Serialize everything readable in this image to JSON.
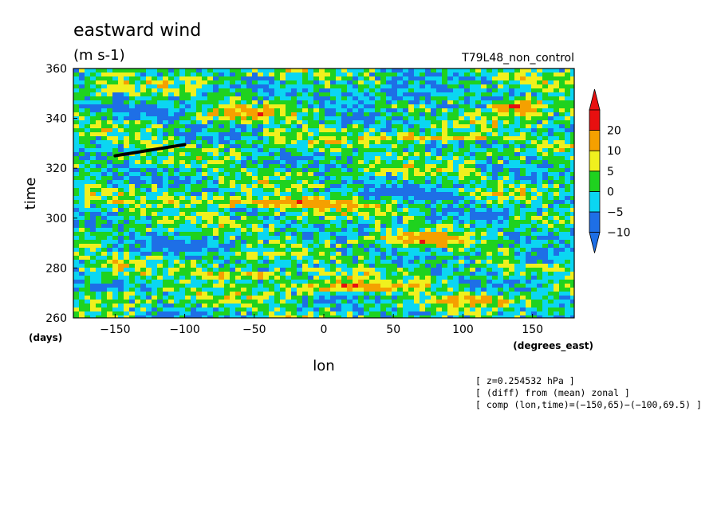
{
  "chart_data": {
    "type": "heatmap",
    "title": "eastward wind",
    "units": "(m s-1)",
    "run_label": "T79L48_non_control",
    "xlabel": "lon",
    "ylabel": "time",
    "x_unit": "(degrees_east)",
    "y_unit": "(days)",
    "xlim": [
      -180,
      180
    ],
    "ylim": [
      260,
      360
    ],
    "x_ticks": [
      -150,
      -100,
      -50,
      0,
      50,
      100,
      150
    ],
    "x_tick_labels": [
      "−150",
      "−100",
      "−50",
      "0",
      "50",
      "100",
      "150"
    ],
    "y_ticks": [
      260,
      280,
      300,
      320,
      340,
      360
    ],
    "y_tick_labels": [
      "260",
      "280",
      "300",
      "320",
      "340",
      "360"
    ],
    "colorbar": {
      "levels": [
        -10,
        -5,
        0,
        5,
        10,
        20
      ],
      "labels": [
        "−10",
        "−5",
        "0",
        "5",
        "10",
        "20"
      ],
      "colors": [
        "#1e6fe6",
        "#0bd6f2",
        "#1fd21f",
        "#f0f01e",
        "#f5a000",
        "#e81010"
      ],
      "under_color": "#1e6fe6",
      "over_color": "#e81010"
    },
    "background_color": "#1fb8e8",
    "features": [
      {
        "lon": 140,
        "time": 346,
        "value": 22,
        "lon_width": 40,
        "time_width": 6
      },
      {
        "lon": -120,
        "time": 343,
        "value": -9,
        "lon_width": 50,
        "time_width": 6
      },
      {
        "lon": -60,
        "time": 343,
        "value": 12,
        "lon_width": 60,
        "time_width": 4
      },
      {
        "lon": 80,
        "time": 333,
        "value": 14,
        "lon_width": 90,
        "time_width": 3
      },
      {
        "lon": -40,
        "time": 307,
        "value": 18,
        "lon_width": 120,
        "time_width": 4
      },
      {
        "lon": 70,
        "time": 292,
        "value": 12,
        "lon_width": 60,
        "time_width": 5
      },
      {
        "lon": 20,
        "time": 273,
        "value": 16,
        "lon_width": 80,
        "time_width": 4
      },
      {
        "lon": -60,
        "time": 278,
        "value": 14,
        "lon_width": 70,
        "time_width": 4
      },
      {
        "lon": 110,
        "time": 268,
        "value": 10,
        "lon_width": 50,
        "time_width": 4
      },
      {
        "lon": -150,
        "time": 270,
        "value": 8,
        "lon_width": 40,
        "time_width": 3
      },
      {
        "lon": 50,
        "time": 350,
        "value": -9,
        "lon_width": 80,
        "time_width": 6
      },
      {
        "lon": 60,
        "time": 310,
        "value": -8,
        "lon_width": 70,
        "time_width": 6
      },
      {
        "lon": -100,
        "time": 290,
        "value": -8,
        "lon_width": 70,
        "time_width": 6
      },
      {
        "lon": 150,
        "time": 285,
        "value": -9,
        "lon_width": 40,
        "time_width": 6
      }
    ],
    "composite_line": {
      "start": [
        -150,
        325
      ],
      "end": [
        -100,
        329.5
      ]
    }
  },
  "info_lines": [
    "[ z=0.254532 hPa ]",
    "[ (diff) from (mean) zonal ]",
    "[ comp (lon,time)=(−150,65)−(−100,69.5) ]"
  ]
}
